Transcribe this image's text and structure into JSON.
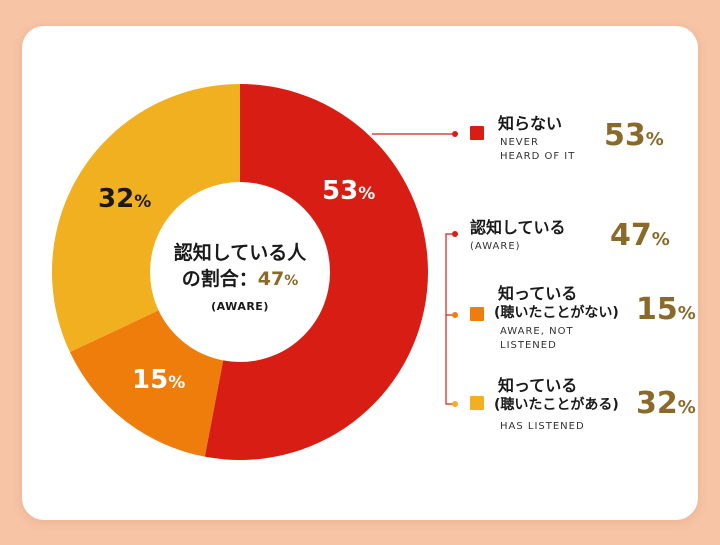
{
  "chart_data": {
    "type": "pie",
    "categories": [
      "知らない",
      "知っている(聴いたことがない)",
      "知っている(聴いたことがある)"
    ],
    "values": [
      53,
      15,
      32
    ],
    "unit": "%",
    "colors": [
      "#d81e14",
      "#ef7d0c",
      "#f0b020"
    ],
    "center": {
      "line1": "認知している人",
      "line2_prefix": "の割合：",
      "value": "47",
      "unit": "%",
      "sub": "(AWARE)"
    },
    "slice_labels": [
      {
        "value": "53",
        "unit": "%"
      },
      {
        "value": "15",
        "unit": "%"
      },
      {
        "value": "32",
        "unit": "%"
      }
    ],
    "legend": [
      {
        "title": "知らない",
        "sub": [
          "NEVER",
          "HEARD OF IT"
        ],
        "value": "53",
        "unit": "%",
        "color": "#d81e14"
      },
      {
        "title": "認知している",
        "sub": [
          "(AWARE)"
        ],
        "value": "47",
        "unit": "%"
      },
      {
        "title": "知っている",
        "title2": "(聴いたことがない)",
        "sub": [
          "AWARE, NOT",
          "LISTENED"
        ],
        "value": "15",
        "unit": "%",
        "color": "#ef7d0c"
      },
      {
        "title": "知っている",
        "title2": "(聴いたことがある)",
        "sub": [
          "HAS LISTENED"
        ],
        "value": "32",
        "unit": "%",
        "color": "#f0b020"
      }
    ]
  }
}
